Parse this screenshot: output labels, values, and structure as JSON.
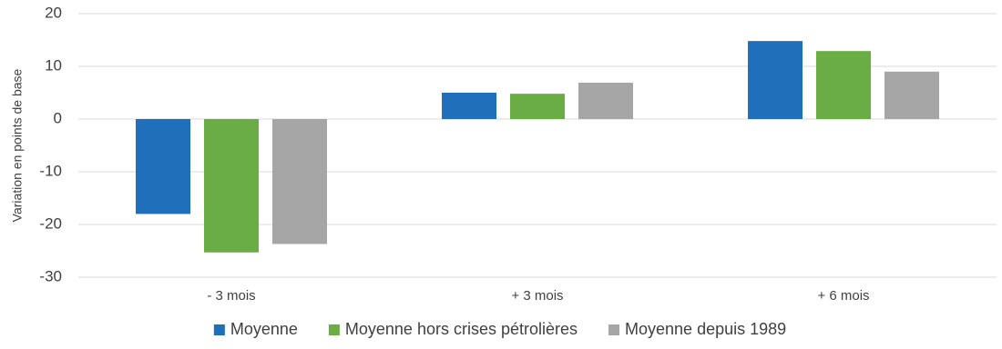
{
  "chart_data": {
    "type": "bar",
    "y_label": "Variation en points de base",
    "categories": [
      "- 3 mois",
      "+ 3 mois",
      "+ 6 mois"
    ],
    "series": [
      {
        "name": "Moyenne",
        "color": "#1f6fba",
        "values": [
          -18,
          5,
          14.8
        ]
      },
      {
        "name": "Moyenne hors crises pétrolières",
        "color": "#6aad45",
        "values": [
          -25.3,
          4.8,
          12.9
        ]
      },
      {
        "name": "Moyenne depuis 1989",
        "color": "#a6a6a6",
        "values": [
          -23.7,
          6.9,
          9
        ]
      }
    ],
    "ylim": [
      -30,
      20
    ],
    "yticks": [
      -30,
      -20,
      -10,
      0,
      10,
      20
    ],
    "grid": true,
    "legend": "bottom"
  }
}
